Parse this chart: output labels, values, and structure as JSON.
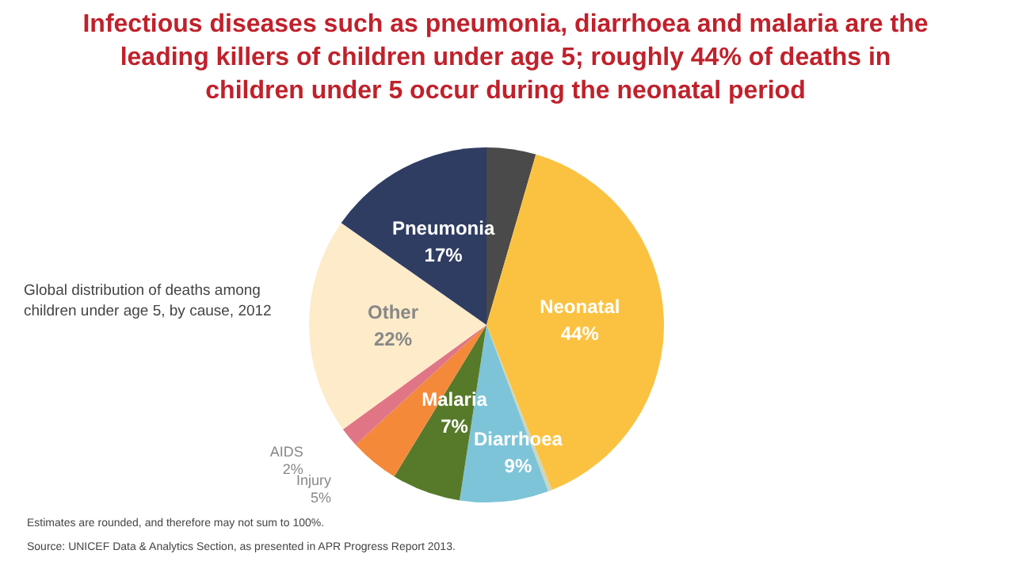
{
  "chart_data": {
    "type": "pie",
    "title": "Infectious diseases such as pneumonia, diarrhoea and malaria are the leading killers of children under age 5; roughly 44% of deaths in children under 5 occur during the neonatal period",
    "subtitle": "Global distribution of deaths among children under age 5, by cause, 2012",
    "categories": [
      null,
      "Neonatal",
      null,
      "Diarrhoea",
      "Malaria",
      "Injury",
      "AIDS",
      "Other",
      "Pneumonia"
    ],
    "values": [
      5,
      44,
      0.4,
      9,
      7,
      5,
      2,
      22,
      17
    ],
    "value_labels": [
      null,
      "44%",
      null,
      "9%",
      "7%",
      "5%",
      "2%",
      "22%",
      "17%"
    ],
    "colors": [
      "#4a4a4a",
      "#fbc241",
      "#c9d6c2",
      "#7ec4d8",
      "#577a2a",
      "#f4893a",
      "#e07685",
      "#fdebca",
      "#2f3d63"
    ],
    "annotations": [
      "Estimates are rounded, and therefore may not sum to 100%.",
      "Source: UNICEF Data & Analytics Section, as presented in APR Progress Report 2013."
    ]
  }
}
